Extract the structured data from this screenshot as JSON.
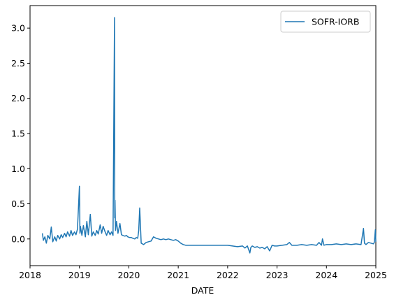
{
  "chart_data": {
    "type": "line",
    "title": "",
    "xlabel": "DATE",
    "ylabel": "",
    "xlim": [
      2018,
      2025
    ],
    "ylim": [
      -0.38,
      3.32
    ],
    "xticks": [
      2018,
      2019,
      2020,
      2021,
      2022,
      2023,
      2024,
      2025
    ],
    "xtick_labels": [
      "2018",
      "2019",
      "2020",
      "2021",
      "2022",
      "2023",
      "2024",
      "2025"
    ],
    "yticks": [
      0.0,
      0.5,
      1.0,
      1.5,
      2.0,
      2.5,
      3.0
    ],
    "ytick_labels": [
      "0.0",
      "0.5",
      "1.0",
      "1.5",
      "2.0",
      "2.5",
      "3.0"
    ],
    "grid": false,
    "legend_position": "upper right",
    "series": [
      {
        "name": "SOFR-IORB",
        "color": "#1f77b4",
        "x": [
          2018.25,
          2018.27,
          2018.3,
          2018.33,
          2018.36,
          2018.4,
          2018.43,
          2018.46,
          2018.5,
          2018.53,
          2018.56,
          2018.6,
          2018.63,
          2018.66,
          2018.7,
          2018.73,
          2018.76,
          2018.8,
          2018.83,
          2018.86,
          2018.9,
          2018.93,
          2018.96,
          2019.0,
          2019.01,
          2019.02,
          2019.05,
          2019.08,
          2019.12,
          2019.15,
          2019.18,
          2019.22,
          2019.25,
          2019.28,
          2019.32,
          2019.35,
          2019.38,
          2019.42,
          2019.45,
          2019.48,
          2019.52,
          2019.55,
          2019.58,
          2019.62,
          2019.65,
          2019.68,
          2019.71,
          2019.715,
          2019.72,
          2019.73,
          2019.75,
          2019.78,
          2019.82,
          2019.85,
          2019.88,
          2019.92,
          2019.95,
          2019.98,
          2020.02,
          2020.05,
          2020.08,
          2020.12,
          2020.15,
          2020.18,
          2020.2,
          2020.22,
          2020.25,
          2020.3,
          2020.35,
          2020.4,
          2020.45,
          2020.5,
          2020.55,
          2020.6,
          2020.65,
          2020.7,
          2020.75,
          2020.8,
          2020.85,
          2020.9,
          2020.95,
          2021.0,
          2021.05,
          2021.1,
          2021.15,
          2021.2,
          2021.3,
          2021.4,
          2021.5,
          2021.6,
          2021.7,
          2021.8,
          2021.9,
          2022.0,
          2022.1,
          2022.2,
          2022.3,
          2022.35,
          2022.4,
          2022.45,
          2022.47,
          2022.5,
          2022.55,
          2022.6,
          2022.65,
          2022.7,
          2022.75,
          2022.8,
          2022.85,
          2022.9,
          2022.95,
          2023.0,
          2023.1,
          2023.2,
          2023.25,
          2023.3,
          2023.4,
          2023.5,
          2023.6,
          2023.7,
          2023.8,
          2023.85,
          2023.9,
          2023.92,
          2023.95,
          2024.0,
          2024.1,
          2024.2,
          2024.3,
          2024.4,
          2024.5,
          2024.6,
          2024.7,
          2024.75,
          2024.77,
          2024.8,
          2024.85,
          2024.9,
          2024.95,
          2024.97,
          2024.99,
          2025.0
        ],
        "values": [
          0.08,
          -0.02,
          0.03,
          -0.06,
          0.05,
          0.0,
          0.17,
          -0.04,
          0.03,
          -0.03,
          0.05,
          0.0,
          0.06,
          0.02,
          0.08,
          0.03,
          0.1,
          0.04,
          0.12,
          0.05,
          0.1,
          0.06,
          0.14,
          0.75,
          0.08,
          0.18,
          0.05,
          0.19,
          0.03,
          0.25,
          0.06,
          0.35,
          0.04,
          0.1,
          0.05,
          0.12,
          0.07,
          0.2,
          0.08,
          0.18,
          0.1,
          0.05,
          0.12,
          0.06,
          0.1,
          0.05,
          3.15,
          0.3,
          0.55,
          0.12,
          0.25,
          0.08,
          0.22,
          0.06,
          0.05,
          0.04,
          0.05,
          0.03,
          0.02,
          0.02,
          0.01,
          0.0,
          0.02,
          0.01,
          0.12,
          0.44,
          -0.06,
          -0.08,
          -0.05,
          -0.04,
          -0.03,
          0.03,
          0.01,
          0.0,
          -0.01,
          0.0,
          -0.01,
          0.0,
          -0.01,
          -0.02,
          -0.01,
          -0.03,
          -0.06,
          -0.08,
          -0.09,
          -0.09,
          -0.09,
          -0.09,
          -0.09,
          -0.09,
          -0.09,
          -0.09,
          -0.09,
          -0.09,
          -0.1,
          -0.11,
          -0.1,
          -0.13,
          -0.1,
          -0.2,
          -0.12,
          -0.1,
          -0.12,
          -0.11,
          -0.13,
          -0.12,
          -0.14,
          -0.11,
          -0.17,
          -0.09,
          -0.1,
          -0.1,
          -0.09,
          -0.08,
          -0.05,
          -0.09,
          -0.09,
          -0.08,
          -0.09,
          -0.08,
          -0.09,
          -0.05,
          -0.09,
          0.0,
          -0.09,
          -0.08,
          -0.08,
          -0.07,
          -0.08,
          -0.07,
          -0.08,
          -0.07,
          -0.08,
          0.15,
          -0.06,
          -0.08,
          -0.05,
          -0.06,
          -0.07,
          -0.05,
          0.13,
          -0.04
        ]
      }
    ]
  }
}
